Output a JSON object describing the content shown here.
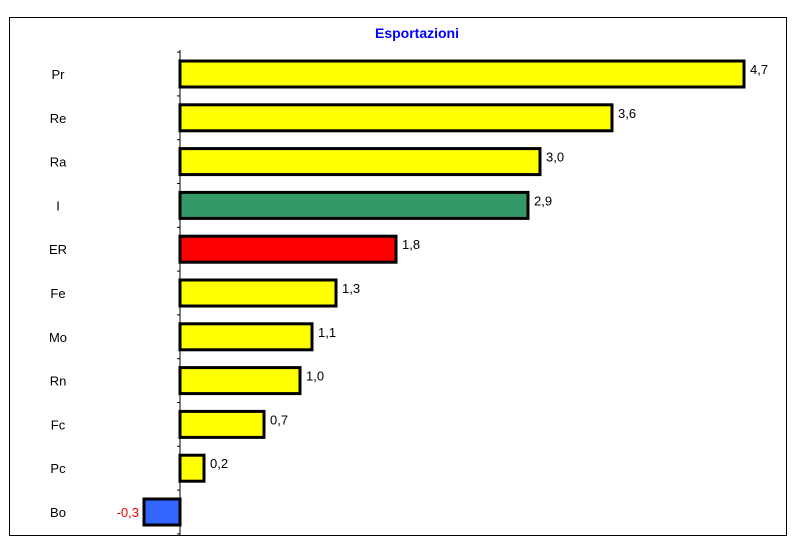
{
  "chart_data": {
    "type": "bar",
    "orientation": "horizontal",
    "title": "Esportazioni",
    "categories": [
      "Pr",
      "Re",
      "Ra",
      "I",
      "ER",
      "Fe",
      "Mo",
      "Rn",
      "Fc",
      "Pc",
      "Bo"
    ],
    "values": [
      4.7,
      3.6,
      3.0,
      2.9,
      1.8,
      1.3,
      1.1,
      1.0,
      0.7,
      0.2,
      -0.3
    ],
    "value_labels": [
      "4,7",
      "3,6",
      "3,0",
      "2,9",
      "1,8",
      "1,3",
      "1,1",
      "1,0",
      "0,7",
      "0,2",
      "-0,3"
    ],
    "bar_colors": [
      "#ffff00",
      "#ffff00",
      "#ffff00",
      "#339966",
      "#ff0000",
      "#ffff00",
      "#ffff00",
      "#ffff00",
      "#ffff00",
      "#ffff00",
      "#3366ff"
    ],
    "negative_label_color": "#ff0000",
    "title_color": "#0000ff",
    "xlim": [
      -0.3,
      4.7
    ],
    "grid": false
  }
}
